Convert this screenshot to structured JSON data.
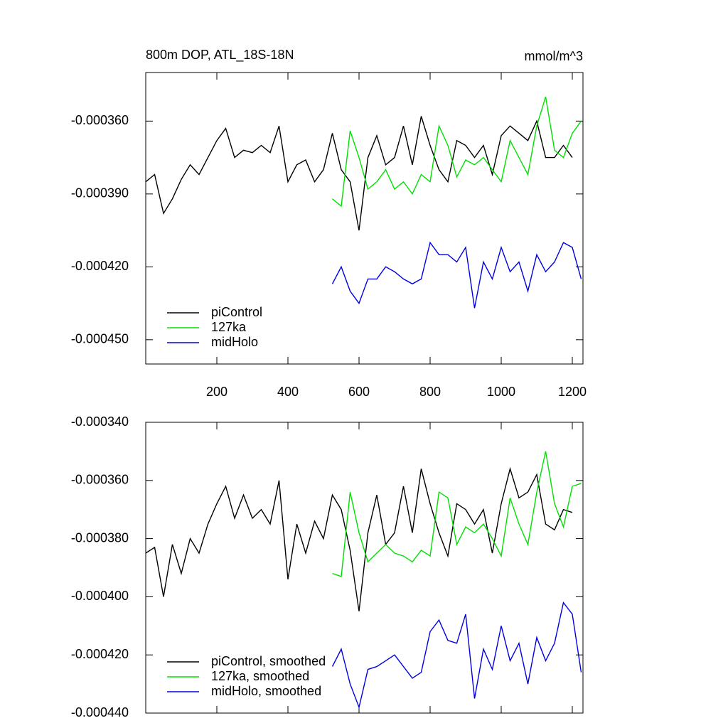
{
  "chart_data": [
    {
      "type": "line",
      "title": "800m DOP, ATL_18S-18N",
      "units": "mmol/m^3",
      "xlim": [
        0,
        1230
      ],
      "xticks": [
        200,
        400,
        600,
        800,
        1000,
        1200
      ],
      "ylim": [
        -0.00046,
        -0.00034
      ],
      "yticks": [
        {
          "value": -0.00036,
          "label": "-0.000360"
        },
        {
          "value": -0.00039,
          "label": "-0.000390"
        },
        {
          "value": -0.00042,
          "label": "-0.000420"
        },
        {
          "value": -0.00045,
          "label": "-0.000450"
        }
      ],
      "legend": "lower left",
      "series": [
        {
          "name": "piControl",
          "color": "#000000",
          "x": [
            0,
            25,
            50,
            75,
            100,
            125,
            150,
            175,
            200,
            225,
            250,
            275,
            300,
            325,
            350,
            375,
            400,
            425,
            450,
            475,
            500,
            525,
            550,
            575,
            600,
            625,
            650,
            675,
            700,
            725,
            750,
            775,
            800,
            825,
            850,
            875,
            900,
            925,
            950,
            975,
            1000,
            1025,
            1050,
            1075,
            1100,
            1125,
            1150,
            1175,
            1200
          ],
          "values": [
            -0.000385,
            -0.000382,
            -0.000398,
            -0.000392,
            -0.000384,
            -0.000378,
            -0.000382,
            -0.000375,
            -0.000368,
            -0.000363,
            -0.000375,
            -0.000372,
            -0.000373,
            -0.00037,
            -0.000373,
            -0.000362,
            -0.000385,
            -0.000378,
            -0.000376,
            -0.000385,
            -0.00038,
            -0.000365,
            -0.00038,
            -0.000385,
            -0.000405,
            -0.000375,
            -0.000366,
            -0.000378,
            -0.000375,
            -0.000362,
            -0.000378,
            -0.000358,
            -0.00037,
            -0.00038,
            -0.000385,
            -0.000368,
            -0.00037,
            -0.000375,
            -0.00037,
            -0.000382,
            -0.000366,
            -0.000362,
            -0.000365,
            -0.000368,
            -0.00036,
            -0.000375,
            -0.000375,
            -0.00037,
            -0.000375
          ]
        },
        {
          "name": "127ka",
          "color": "#00e000",
          "x": [
            525,
            550,
            575,
            600,
            625,
            650,
            675,
            700,
            725,
            750,
            775,
            800,
            825,
            850,
            875,
            900,
            925,
            950,
            975,
            1000,
            1025,
            1050,
            1075,
            1100,
            1125,
            1150,
            1175,
            1200,
            1225
          ],
          "values": [
            -0.000392,
            -0.000395,
            -0.000364,
            -0.000375,
            -0.000388,
            -0.000385,
            -0.00038,
            -0.000388,
            -0.000385,
            -0.00039,
            -0.000382,
            -0.000385,
            -0.000362,
            -0.00037,
            -0.000383,
            -0.000376,
            -0.000378,
            -0.000375,
            -0.00038,
            -0.000385,
            -0.000368,
            -0.000375,
            -0.000382,
            -0.000362,
            -0.00035,
            -0.000372,
            -0.000375,
            -0.000365,
            -0.00036
          ]
        },
        {
          "name": "midHolo",
          "color": "#0000e0",
          "x": [
            525,
            550,
            575,
            600,
            625,
            650,
            675,
            700,
            725,
            750,
            775,
            800,
            825,
            850,
            875,
            900,
            925,
            950,
            975,
            1000,
            1025,
            1050,
            1075,
            1100,
            1125,
            1150,
            1175,
            1200,
            1225
          ],
          "values": [
            -0.000427,
            -0.00042,
            -0.00043,
            -0.000435,
            -0.000425,
            -0.000425,
            -0.00042,
            -0.000422,
            -0.000425,
            -0.000427,
            -0.000425,
            -0.00041,
            -0.000415,
            -0.000415,
            -0.000418,
            -0.000412,
            -0.000437,
            -0.000418,
            -0.000425,
            -0.000412,
            -0.000422,
            -0.000418,
            -0.00043,
            -0.000415,
            -0.000422,
            -0.000418,
            -0.00041,
            -0.000412,
            -0.000425
          ]
        }
      ]
    },
    {
      "type": "line",
      "xlim": [
        0,
        1230
      ],
      "xticks": [
        200,
        400,
        600,
        800,
        1000,
        1200
      ],
      "ylim": [
        -0.00044,
        -0.00034
      ],
      "yticks": [
        {
          "value": -0.00034,
          "label": "-0.000340"
        },
        {
          "value": -0.00036,
          "label": "-0.000360"
        },
        {
          "value": -0.00038,
          "label": "-0.000380"
        },
        {
          "value": -0.0004,
          "label": "-0.000400"
        },
        {
          "value": -0.00042,
          "label": "-0.000420"
        },
        {
          "value": -0.00044,
          "label": "-0.000440"
        }
      ],
      "legend": "lower left",
      "series": [
        {
          "name": "piControl, smoothed",
          "color": "#000000",
          "x": [
            0,
            25,
            50,
            75,
            100,
            125,
            150,
            175,
            200,
            225,
            250,
            275,
            300,
            325,
            350,
            375,
            400,
            425,
            450,
            475,
            500,
            525,
            550,
            575,
            600,
            625,
            650,
            675,
            700,
            725,
            750,
            775,
            800,
            825,
            850,
            875,
            900,
            925,
            950,
            975,
            1000,
            1025,
            1050,
            1075,
            1100,
            1125,
            1150,
            1175,
            1200
          ],
          "values": [
            -0.000385,
            -0.000383,
            -0.0004,
            -0.000382,
            -0.000392,
            -0.00038,
            -0.000385,
            -0.000375,
            -0.000368,
            -0.000362,
            -0.000373,
            -0.000365,
            -0.000373,
            -0.00037,
            -0.000375,
            -0.00036,
            -0.000394,
            -0.000375,
            -0.000385,
            -0.000374,
            -0.00038,
            -0.000365,
            -0.00037,
            -0.000384,
            -0.000405,
            -0.000378,
            -0.000365,
            -0.000382,
            -0.000378,
            -0.000362,
            -0.000378,
            -0.000356,
            -0.000368,
            -0.000378,
            -0.000386,
            -0.000368,
            -0.00037,
            -0.000375,
            -0.00037,
            -0.000385,
            -0.000368,
            -0.000356,
            -0.000366,
            -0.000364,
            -0.000358,
            -0.000375,
            -0.000377,
            -0.00037,
            -0.000371
          ]
        },
        {
          "name": "127ka, smoothed",
          "color": "#00e000",
          "x": [
            525,
            550,
            575,
            600,
            625,
            650,
            675,
            700,
            725,
            750,
            775,
            800,
            825,
            850,
            875,
            900,
            925,
            950,
            975,
            1000,
            1025,
            1050,
            1075,
            1100,
            1125,
            1150,
            1175,
            1200,
            1225
          ],
          "values": [
            -0.000392,
            -0.000393,
            -0.000364,
            -0.000378,
            -0.000388,
            -0.000385,
            -0.000382,
            -0.000385,
            -0.000386,
            -0.000388,
            -0.000384,
            -0.000386,
            -0.000364,
            -0.000366,
            -0.000382,
            -0.000376,
            -0.000378,
            -0.000375,
            -0.00038,
            -0.000386,
            -0.000366,
            -0.000375,
            -0.000382,
            -0.000364,
            -0.00035,
            -0.000368,
            -0.000376,
            -0.000362,
            -0.000361
          ]
        },
        {
          "name": "midHolo, smoothed",
          "color": "#0000e0",
          "x": [
            525,
            550,
            575,
            600,
            625,
            650,
            675,
            700,
            725,
            750,
            775,
            800,
            825,
            850,
            875,
            900,
            925,
            950,
            975,
            1000,
            1025,
            1050,
            1075,
            1100,
            1125,
            1150,
            1175,
            1200,
            1225
          ],
          "values": [
            -0.000424,
            -0.000418,
            -0.00043,
            -0.000438,
            -0.000425,
            -0.000424,
            -0.000422,
            -0.00042,
            -0.000424,
            -0.000428,
            -0.000426,
            -0.000412,
            -0.000408,
            -0.000415,
            -0.000416,
            -0.000406,
            -0.000435,
            -0.000418,
            -0.000425,
            -0.00041,
            -0.000422,
            -0.000416,
            -0.00043,
            -0.000414,
            -0.000422,
            -0.000416,
            -0.000402,
            -0.000406,
            -0.000426
          ]
        }
      ]
    }
  ]
}
